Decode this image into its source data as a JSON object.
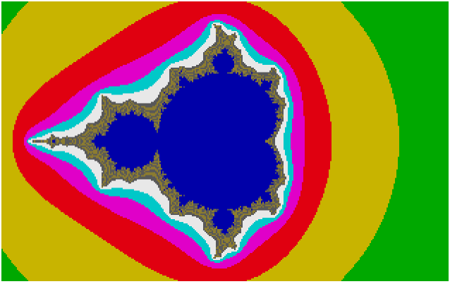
{
  "fractal": {
    "type": "mandelbrot",
    "palette": {
      "background": "#0000a8",
      "escape_colors": [
        "#00a800",
        "#c8b400",
        "#e00010",
        "#e000c8",
        "#00c8c8",
        "#e8e8e8",
        "#8c7c30",
        "#585858"
      ],
      "interior": "#0000a8"
    }
  }
}
